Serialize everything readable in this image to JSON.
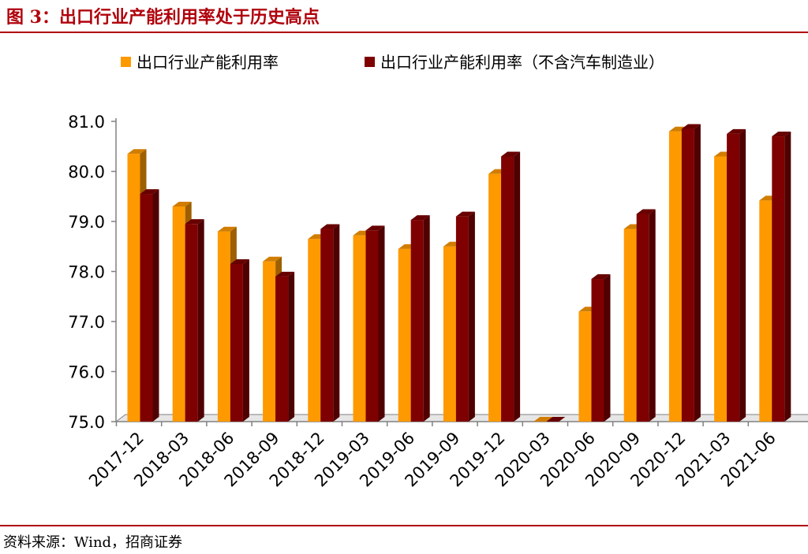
{
  "figure": {
    "title": "图 3：出口行业产能利用率处于历史高点",
    "source": "资料来源：Wind，招商证券"
  },
  "chart_data": {
    "type": "bar",
    "categories": [
      "2017-12",
      "2018-03",
      "2018-06",
      "2018-09",
      "2018-12",
      "2019-03",
      "2019-06",
      "2019-09",
      "2019-12",
      "2020-03",
      "2020-06",
      "2020-09",
      "2020-12",
      "2021-03",
      "2021-06"
    ],
    "series": [
      {
        "name": "出口行业产能利用率",
        "color": "#ff9900",
        "values": [
          80.35,
          79.3,
          78.8,
          78.2,
          78.65,
          78.72,
          78.45,
          78.5,
          79.95,
          75.0,
          77.2,
          78.85,
          80.8,
          80.3,
          79.42
        ]
      },
      {
        "name": "出口行业产能利用率（不含汽车制造业）",
        "color": "#7f0000",
        "values": [
          79.55,
          78.95,
          78.15,
          77.9,
          78.85,
          78.82,
          79.03,
          79.1,
          80.3,
          75.0,
          77.85,
          79.15,
          80.85,
          80.75,
          80.7
        ]
      }
    ],
    "yticks": [
      "75.0",
      "76.0",
      "77.0",
      "78.0",
      "79.0",
      "80.0",
      "81.0"
    ],
    "ylim": [
      75,
      81
    ],
    "grid": false,
    "legend_position": "top"
  }
}
